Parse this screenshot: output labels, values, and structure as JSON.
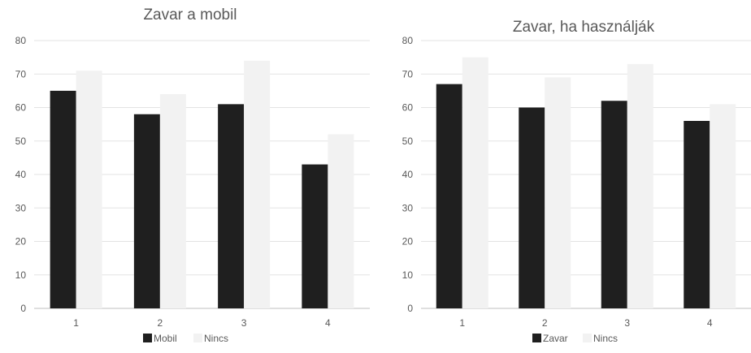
{
  "chart_data": [
    {
      "type": "bar",
      "title": "Zavar a mobil",
      "categories": [
        "1",
        "2",
        "3",
        "4"
      ],
      "series": [
        {
          "name": "Mobil",
          "values": [
            65,
            58,
            61,
            43
          ],
          "color": "#1f1f1f"
        },
        {
          "name": "Nincs",
          "values": [
            71,
            64,
            74,
            52
          ],
          "color": "#f2f2f2"
        }
      ],
      "ylim": [
        0,
        80
      ],
      "yticks": [
        "0",
        "10",
        "20",
        "30",
        "40",
        "50",
        "60",
        "70",
        "80"
      ],
      "grid": true,
      "legend_position": "bottom"
    },
    {
      "type": "bar",
      "title": "Zavar, ha használják",
      "categories": [
        "1",
        "2",
        "3",
        "4"
      ],
      "series": [
        {
          "name": "Zavar",
          "values": [
            67,
            60,
            62,
            56
          ],
          "color": "#1f1f1f"
        },
        {
          "name": "Nincs",
          "values": [
            75,
            69,
            73,
            61
          ],
          "color": "#f2f2f2"
        }
      ],
      "ylim": [
        0,
        80
      ],
      "yticks": [
        "0",
        "10",
        "20",
        "30",
        "40",
        "50",
        "60",
        "70",
        "80"
      ],
      "grid": true,
      "legend_position": "bottom"
    }
  ]
}
